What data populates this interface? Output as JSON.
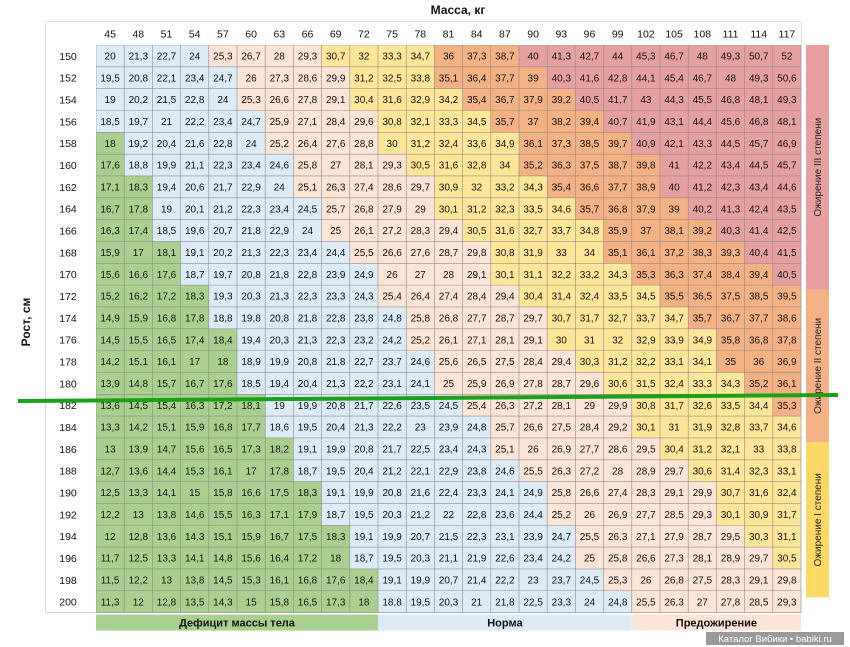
{
  "chart_data": {
    "type": "heatmap",
    "title": "Масса, кг",
    "xlabel": "Масса, кг",
    "ylabel": "Рост, см",
    "x": [
      45,
      48,
      51,
      54,
      57,
      60,
      63,
      66,
      69,
      72,
      75,
      78,
      81,
      84,
      87,
      90,
      93,
      96,
      99,
      102,
      105,
      108,
      111,
      114,
      117
    ],
    "y": [
      150,
      152,
      154,
      156,
      158,
      160,
      162,
      164,
      166,
      168,
      170,
      172,
      174,
      176,
      178,
      180,
      182,
      184,
      186,
      188,
      190,
      192,
      194,
      196,
      198,
      200
    ],
    "values": [
      [
        "20",
        "21,3",
        "22,7",
        "24",
        "25,3",
        "26,7",
        "28",
        "29,3",
        "30,7",
        "32",
        "33,3",
        "34,7",
        "36",
        "37,3",
        "38,7",
        "40",
        "41,3",
        "42,7",
        "44",
        "45,3",
        "46,7",
        "48",
        "49,3",
        "50,7",
        "52"
      ],
      [
        "19,5",
        "20,8",
        "22,1",
        "23,4",
        "24,7",
        "26",
        "27,3",
        "28,6",
        "29,9",
        "31,2",
        "32,5",
        "33,8",
        "35,1",
        "36,4",
        "37,7",
        "39",
        "40,3",
        "41,6",
        "42,8",
        "44,1",
        "45,4",
        "46,7",
        "48",
        "49,3",
        "50,6"
      ],
      [
        "19",
        "20,2",
        "21,5",
        "22,8",
        "24",
        "25,3",
        "26,6",
        "27,8",
        "29,1",
        "30,4",
        "31,6",
        "32,9",
        "34,2",
        "35,4",
        "36,7",
        "37,9",
        "39,2",
        "40,5",
        "41,7",
        "43",
        "44,3",
        "45,5",
        "46,8",
        "48,1",
        "49,3"
      ],
      [
        "18,5",
        "19,7",
        "21",
        "22,2",
        "23,4",
        "24,7",
        "25,9",
        "27,1",
        "28,4",
        "29,6",
        "30,8",
        "32,1",
        "33,3",
        "34,5",
        "35,7",
        "37",
        "38,2",
        "39,4",
        "40,7",
        "41,9",
        "43,1",
        "44,4",
        "45,6",
        "46,8",
        "48,1"
      ],
      [
        "18",
        "19,2",
        "20,4",
        "21,6",
        "22,8",
        "24",
        "25,2",
        "26,4",
        "27,6",
        "28,8",
        "30",
        "31,2",
        "32,4",
        "33,6",
        "34,9",
        "36,1",
        "37,3",
        "38,5",
        "39,7",
        "40,9",
        "42,1",
        "43,3",
        "44,5",
        "45,7",
        "46,9"
      ],
      [
        "17,6",
        "18,8",
        "19,9",
        "21,1",
        "22,3",
        "23,4",
        "24,6",
        "25,8",
        "27",
        "28,1",
        "29,3",
        "30,5",
        "31,6",
        "32,8",
        "34",
        "35,2",
        "36,3",
        "37,5",
        "38,7",
        "39,8",
        "41",
        "42,2",
        "43,4",
        "44,5",
        "45,7"
      ],
      [
        "17,1",
        "18,3",
        "19,4",
        "20,6",
        "21,7",
        "22,9",
        "24",
        "25,1",
        "26,3",
        "27,4",
        "28,6",
        "29,7",
        "30,9",
        "32",
        "33,2",
        "34,3",
        "35,4",
        "36,6",
        "37,7",
        "38,9",
        "40",
        "41,2",
        "42,3",
        "43,4",
        "44,6"
      ],
      [
        "16,7",
        "17,8",
        "19",
        "20,1",
        "21,2",
        "22,3",
        "23,4",
        "24,5",
        "25,7",
        "26,8",
        "27,9",
        "29",
        "30,1",
        "31,2",
        "32,3",
        "33,5",
        "34,6",
        "35,7",
        "36,8",
        "37,9",
        "39",
        "40,2",
        "41,3",
        "42,4",
        "43,5"
      ],
      [
        "16,3",
        "17,4",
        "18,5",
        "19,6",
        "20,7",
        "21,8",
        "22,9",
        "24",
        "25",
        "26,1",
        "27,2",
        "28,3",
        "29,4",
        "30,5",
        "31,6",
        "32,7",
        "33,7",
        "34,8",
        "35,9",
        "37",
        "38,1",
        "39,2",
        "40,3",
        "41,4",
        "42,5"
      ],
      [
        "15,9",
        "17",
        "18,1",
        "19,1",
        "20,2",
        "21,3",
        "22,3",
        "23,4",
        "24,4",
        "25,5",
        "26,6",
        "27,6",
        "28,7",
        "29,8",
        "30,8",
        "31,9",
        "33",
        "34",
        "35,1",
        "36,1",
        "37,2",
        "38,3",
        "39,3",
        "40,4",
        "41,5"
      ],
      [
        "15,6",
        "16,6",
        "17,6",
        "18,7",
        "19,7",
        "20,8",
        "21,8",
        "22,8",
        "23,9",
        "24,9",
        "26",
        "27",
        "28",
        "29,1",
        "30,1",
        "31,1",
        "32,2",
        "33,2",
        "34,3",
        "35,3",
        "36,3",
        "37,4",
        "38,4",
        "39,4",
        "40,5"
      ],
      [
        "15,2",
        "16,2",
        "17,2",
        "18,3",
        "19,3",
        "20,3",
        "21,3",
        "22,3",
        "23,3",
        "24,3",
        "25,4",
        "26,4",
        "27,4",
        "28,4",
        "29,4",
        "30,4",
        "31,4",
        "32,4",
        "33,5",
        "34,5",
        "35,5",
        "36,5",
        "37,5",
        "38,5",
        "39,5"
      ],
      [
        "14,9",
        "15,9",
        "16,8",
        "17,8",
        "18,8",
        "19,8",
        "20,8",
        "21,8",
        "22,8",
        "23,8",
        "24,8",
        "25,8",
        "26,8",
        "27,7",
        "28,7",
        "29,7",
        "30,7",
        "31,7",
        "32,7",
        "33,7",
        "34,7",
        "35,7",
        "36,7",
        "37,7",
        "38,6"
      ],
      [
        "14,5",
        "15,5",
        "16,5",
        "17,4",
        "18,4",
        "19,4",
        "20,3",
        "21,3",
        "22,3",
        "23,2",
        "24,2",
        "25,2",
        "26,1",
        "27,1",
        "28,1",
        "29,1",
        "30",
        "31",
        "32",
        "32,9",
        "33,9",
        "34,9",
        "35,8",
        "36,8",
        "37,8"
      ],
      [
        "14,2",
        "15,1",
        "16,1",
        "17",
        "18",
        "18,9",
        "19,9",
        "20,8",
        "21,8",
        "22,7",
        "23,7",
        "24,6",
        "25,6",
        "26,5",
        "27,5",
        "28,4",
        "29,4",
        "30,3",
        "31,2",
        "32,2",
        "33,1",
        "34,1",
        "35",
        "36",
        "36,9"
      ],
      [
        "13,9",
        "14,8",
        "15,7",
        "16,7",
        "17,6",
        "18,5",
        "19,4",
        "20,4",
        "21,3",
        "22,2",
        "23,1",
        "24,1",
        "25",
        "25,9",
        "26,9",
        "27,8",
        "28,7",
        "29,6",
        "30,6",
        "31,5",
        "32,4",
        "33,3",
        "34,3",
        "35,2",
        "36,1"
      ],
      [
        "13,6",
        "14,5",
        "15,4",
        "16,3",
        "17,2",
        "18,1",
        "19",
        "19,9",
        "20,8",
        "21,7",
        "22,6",
        "23,5",
        "24,5",
        "25,4",
        "26,3",
        "27,2",
        "28,1",
        "29",
        "29,9",
        "30,8",
        "31,7",
        "32,6",
        "33,5",
        "34,4",
        "35,3"
      ],
      [
        "13,3",
        "14,2",
        "15,1",
        "15,9",
        "16,8",
        "17,7",
        "18,6",
        "19,5",
        "20,4",
        "21,3",
        "22,2",
        "23",
        "23,9",
        "24,8",
        "25,7",
        "26,6",
        "27,5",
        "28,4",
        "29,2",
        "30,1",
        "31",
        "31,9",
        "32,8",
        "33,7",
        "34,6"
      ],
      [
        "13",
        "13,9",
        "14,7",
        "15,6",
        "16,5",
        "17,3",
        "18,2",
        "19,1",
        "19,9",
        "20,8",
        "21,7",
        "22,5",
        "23,4",
        "24,3",
        "25,1",
        "26",
        "26,9",
        "27,7",
        "28,6",
        "29,5",
        "30,4",
        "31,2",
        "32,1",
        "33",
        "33,8"
      ],
      [
        "12,7",
        "13,6",
        "14,4",
        "15,3",
        "16,1",
        "17",
        "17,8",
        "18,7",
        "19,5",
        "20,4",
        "21,2",
        "22,1",
        "22,9",
        "23,8",
        "24,6",
        "25,5",
        "26,3",
        "27,2",
        "28",
        "28,9",
        "29,7",
        "30,6",
        "31,4",
        "32,3",
        "33,1"
      ],
      [
        "12,5",
        "13,3",
        "14,1",
        "15",
        "15,8",
        "16,6",
        "17,5",
        "18,3",
        "19,1",
        "19,9",
        "20,8",
        "21,6",
        "22,4",
        "23,3",
        "24,1",
        "24,9",
        "25,8",
        "26,6",
        "27,4",
        "28,3",
        "29,1",
        "29,9",
        "30,7",
        "31,6",
        "32,4"
      ],
      [
        "12,2",
        "13",
        "13,8",
        "14,6",
        "15,5",
        "16,3",
        "17,1",
        "17,9",
        "18,7",
        "19,5",
        "20,3",
        "21,2",
        "22",
        "22,8",
        "23,6",
        "24,4",
        "25,2",
        "26",
        "26,9",
        "27,7",
        "28,5",
        "29,3",
        "30,1",
        "30,9",
        "31,7"
      ],
      [
        "12",
        "12,8",
        "13,6",
        "14,3",
        "15,1",
        "15,9",
        "16,7",
        "17,5",
        "18,3",
        "19,1",
        "19,9",
        "20,7",
        "21,5",
        "22,3",
        "23,1",
        "23,9",
        "24,7",
        "25,5",
        "26,3",
        "27,1",
        "27,9",
        "28,7",
        "29,5",
        "30,3",
        "31,1"
      ],
      [
        "11,7",
        "12,5",
        "13,3",
        "14,1",
        "14,8",
        "15,6",
        "16,4",
        "17,2",
        "18",
        "18,7",
        "19,5",
        "20,3",
        "21,1",
        "21,9",
        "22,6",
        "23,4",
        "24,2",
        "25",
        "25,8",
        "26,6",
        "27,3",
        "28,1",
        "28,9",
        "29,7",
        "30,5"
      ],
      [
        "11,5",
        "12,2",
        "13",
        "13,8",
        "14,5",
        "15,3",
        "16,1",
        "16,8",
        "17,6",
        "18,4",
        "19,1",
        "19,9",
        "20,7",
        "21,4",
        "22,2",
        "23",
        "23,7",
        "24,5",
        "25,3",
        "26",
        "26,8",
        "27,5",
        "28,3",
        "29,1",
        "29,8"
      ],
      [
        "11,3",
        "12",
        "12,8",
        "13,5",
        "14,3",
        "15",
        "15,8",
        "16,5",
        "17,3",
        "18",
        "18,8",
        "19,5",
        "20,3",
        "21",
        "21,8",
        "22,5",
        "23,3",
        "24",
        "24,8",
        "25,5",
        "26,3",
        "27",
        "27,8",
        "28,5",
        "29,3"
      ]
    ],
    "bands": [
      {
        "label": "Дефицит массы тела",
        "color": "#a9d08e"
      },
      {
        "label": "Норма",
        "color": "#ddebf7"
      },
      {
        "label": "Предожирение",
        "color": "#fce4d6"
      }
    ],
    "obesity_labels": [
      {
        "label": "Ожирение III степени",
        "color": "#e6a0a0"
      },
      {
        "label": "Ожирение II степени",
        "color": "#f4b183"
      },
      {
        "label": "Ожирение I степени",
        "color": "#ffd966"
      }
    ],
    "legend": "bottom and right bands",
    "cell_colors": {
      "deficit": "#a9d08e",
      "normal": "#ddebf7",
      "pre_obesity": "#fce4d6",
      "obesity_1": "#ffe699",
      "obesity_2": "#f4b183",
      "obesity_3": "#e6a0a0"
    },
    "highlight_line_color": "#1aa01a",
    "grid": true
  },
  "watermark": "Каталог Вибики • babiki.ru"
}
